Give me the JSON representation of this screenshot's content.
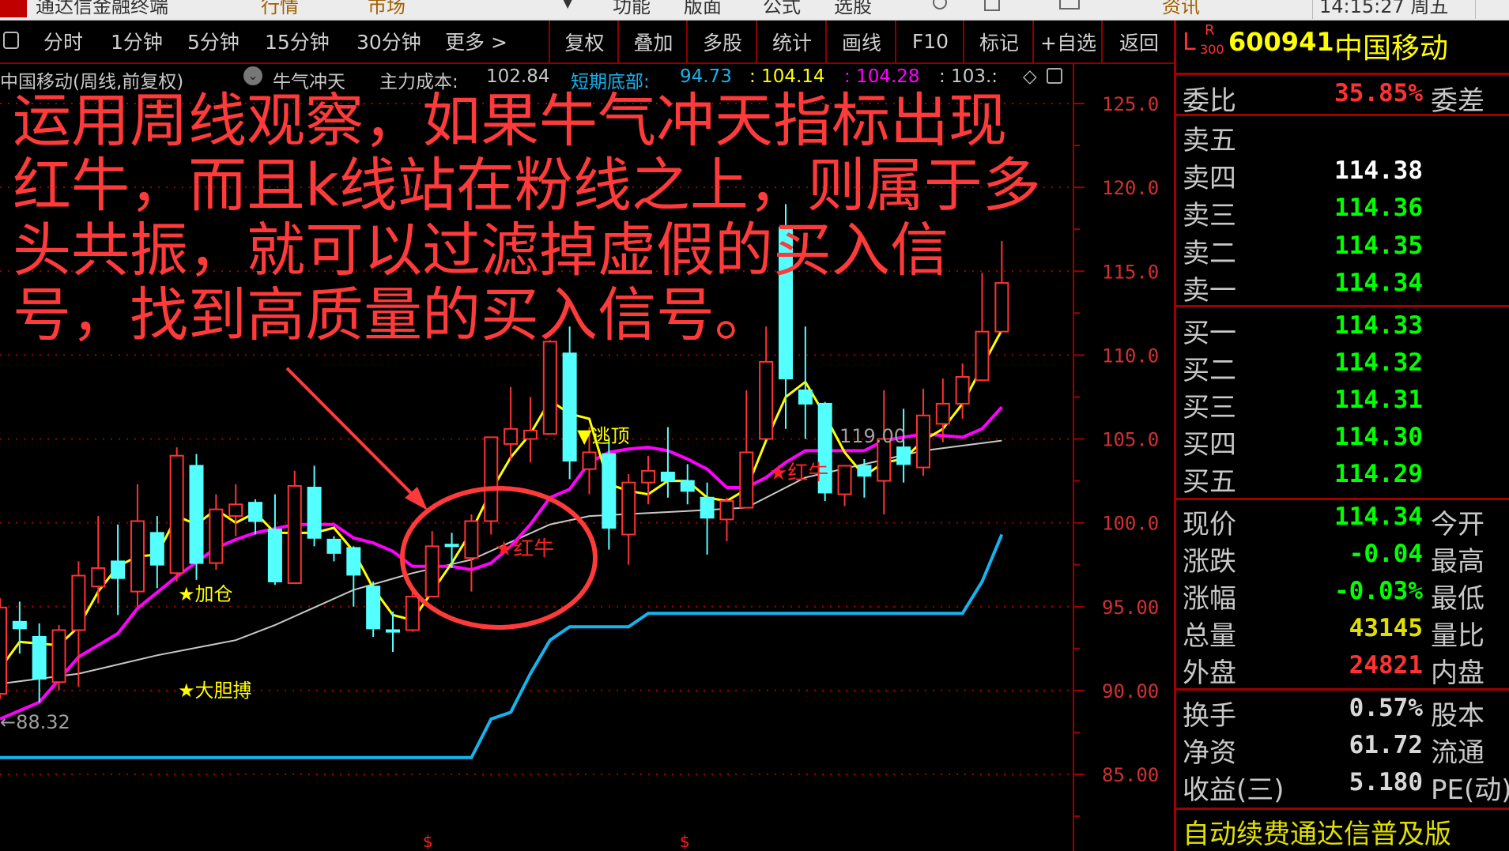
{
  "system_bar": {
    "app_title": "通达信金融终端",
    "menus": [
      "行情",
      "市场",
      "▼",
      "功能",
      "版面",
      "公式",
      "选股",
      "资讯"
    ],
    "clock": "14:15:27 周五"
  },
  "toolbar": {
    "periods": [
      "分时",
      "1分钟",
      "5分钟",
      "15分钟",
      "30分钟",
      "更多 >"
    ],
    "buttons": [
      "复权",
      "叠加",
      "多股",
      "统计",
      "画线",
      "F10",
      "标记",
      "+自选",
      "返回"
    ]
  },
  "info_row": {
    "stock_period": "中国移动(周线,前复权)",
    "indicator": "牛气冲天",
    "main_cost_label": "主力成本:",
    "main_cost": "102.84",
    "short_bottom_label": "短期底部:",
    "short_bottom": "94.73",
    "yellow_value": ": 104.14",
    "magenta_value": ": 104.28",
    "white_value": ": 103.:",
    "diamond": "◇"
  },
  "overlay_text": [
    "运用周线观察，如果牛气冲天指标出现红牛，而且k线站在",
    "粉线之上，则属于多头共振，就可以过滤掉虚假的买入信",
    "号，找到高质量的买入信号。"
  ],
  "colors": {
    "up": "#ff3232",
    "down": "#54ffff",
    "yellow_line": "#ffff00",
    "magenta_line": "#ff00ff",
    "white_line": "#c8c8c8",
    "bottom_line": "#14b4f0",
    "annotation": "#ff3a3a"
  },
  "chart_data": {
    "type": "candlestick",
    "period": "weekly",
    "y_ticks": [
      "125.0",
      "120.0",
      "115.0",
      "110.0",
      "105.0",
      "100.0",
      "95.00",
      "90.00",
      "85.00"
    ],
    "ylim": [
      85,
      125
    ],
    "grid": true,
    "ohlc": [
      [
        89.8,
        95.5,
        89.5,
        94.95
      ],
      [
        94.1,
        95.3,
        92.2,
        93.7
      ],
      [
        93.2,
        94.0,
        89.3,
        90.7
      ],
      [
        90.5,
        93.9,
        90.0,
        93.6
      ],
      [
        93.6,
        97.7,
        90.2,
        96.85
      ],
      [
        96.2,
        100.4,
        95.2,
        97.3
      ],
      [
        97.7,
        99.9,
        94.5,
        96.7
      ],
      [
        95.9,
        102.3,
        95.0,
        100.1
      ],
      [
        99.4,
        100.4,
        96.1,
        97.5
      ],
      [
        97.0,
        104.5,
        96.5,
        104.0
      ],
      [
        103.4,
        104.1,
        96.6,
        97.6
      ],
      [
        97.6,
        101.7,
        97.2,
        100.8
      ],
      [
        100.4,
        102.3,
        99.2,
        101.1
      ],
      [
        101.2,
        101.4,
        99.3,
        100.1
      ],
      [
        99.6,
        101.7,
        96.3,
        96.5
      ],
      [
        96.4,
        103.1,
        96.4,
        102.2
      ],
      [
        102.1,
        103.4,
        98.6,
        99.1
      ],
      [
        99.0,
        99.2,
        97.7,
        98.2
      ],
      [
        98.5,
        98.6,
        95.0,
        96.9
      ],
      [
        96.2,
        96.5,
        93.2,
        93.7
      ],
      [
        93.6,
        94.7,
        92.3,
        93.5
      ],
      [
        93.6,
        96.1,
        93.5,
        95.6
      ],
      [
        95.6,
        99.5,
        95.6,
        98.6
      ],
      [
        98.7,
        99.4,
        97.3,
        98.6
      ],
      [
        97.9,
        100.5,
        95.9,
        100.1
      ],
      [
        100.1,
        105.1,
        99.3,
        105.1
      ],
      [
        104.7,
        108.1,
        103.7,
        105.6
      ],
      [
        105.0,
        107.5,
        103.6,
        105.5
      ],
      [
        105.3,
        110.9,
        105.3,
        110.8
      ],
      [
        110.1,
        111.7,
        102.6,
        103.7
      ],
      [
        103.2,
        105.7,
        101.7,
        104.2
      ],
      [
        104.1,
        105.1,
        98.4,
        99.7
      ],
      [
        99.3,
        102.9,
        97.5,
        102.4
      ],
      [
        102.4,
        104.0,
        101.1,
        103.1
      ],
      [
        103.0,
        105.7,
        101.5,
        102.5
      ],
      [
        102.5,
        103.5,
        101.1,
        101.9
      ],
      [
        101.5,
        102.4,
        98.1,
        100.3
      ],
      [
        100.2,
        101.5,
        98.9,
        101.3
      ],
      [
        100.9,
        107.9,
        100.9,
        104.2
      ],
      [
        105.0,
        111.7,
        105.0,
        109.6
      ],
      [
        117.6,
        119.0,
        105.6,
        108.6
      ],
      [
        107.9,
        111.7,
        105.0,
        107.1
      ],
      [
        107.1,
        107.2,
        101.3,
        101.8
      ],
      [
        101.7,
        103.4,
        101.0,
        103.4
      ],
      [
        103.4,
        103.8,
        101.5,
        102.8
      ],
      [
        102.5,
        107.9,
        100.5,
        105.0
      ],
      [
        104.5,
        106.8,
        102.4,
        103.5
      ],
      [
        103.3,
        108.0,
        102.8,
        106.4
      ],
      [
        105.9,
        108.6,
        104.8,
        107.1
      ],
      [
        107.1,
        109.5,
        106.2,
        108.7
      ],
      [
        108.5,
        114.9,
        108.5,
        111.4
      ],
      [
        111.4,
        116.8,
        111.4,
        114.3
      ]
    ],
    "lines": {
      "yellow": [
        [
          0,
          91.3
        ],
        [
          1,
          92.9
        ],
        [
          3,
          92.7
        ],
        [
          4,
          93.8
        ],
        [
          5,
          95.9
        ],
        [
          6,
          97.4
        ],
        [
          7,
          98.0
        ],
        [
          8,
          98.1
        ],
        [
          9,
          100.4
        ],
        [
          10,
          99.9
        ],
        [
          11,
          100.8
        ],
        [
          12,
          100.0
        ],
        [
          13,
          100.6
        ],
        [
          14,
          99.4
        ],
        [
          16,
          99.4
        ],
        [
          17,
          99.7
        ],
        [
          18,
          98.3
        ],
        [
          19,
          96.1
        ],
        [
          20,
          94.5
        ],
        [
          21,
          94.2
        ],
        [
          22,
          95.9
        ],
        [
          23,
          97.6
        ],
        [
          24,
          99.5
        ],
        [
          25,
          101.9
        ],
        [
          26,
          103.9
        ],
        [
          27,
          105.3
        ],
        [
          28,
          107.3
        ],
        [
          29,
          106.5
        ],
        [
          30,
          106.2
        ],
        [
          31,
          102.3
        ],
        [
          32,
          101.9
        ],
        [
          33,
          101.7
        ],
        [
          34,
          102.5
        ],
        [
          35,
          102.5
        ],
        [
          36,
          101.5
        ],
        [
          37,
          101.3
        ],
        [
          38,
          102.0
        ],
        [
          39,
          104.9
        ],
        [
          40,
          107.5
        ],
        [
          41,
          108.4
        ],
        [
          42,
          106.4
        ],
        [
          43,
          104.2
        ],
        [
          44,
          102.8
        ],
        [
          45,
          103.6
        ],
        [
          46,
          103.8
        ],
        [
          47,
          104.9
        ],
        [
          48,
          105.6
        ],
        [
          49,
          107.1
        ],
        [
          50,
          109.3
        ],
        [
          51,
          111.5
        ]
      ],
      "magenta": [
        [
          0,
          88.3
        ],
        [
          2,
          89.3
        ],
        [
          4,
          92.0
        ],
        [
          6,
          93.4
        ],
        [
          7,
          94.9
        ],
        [
          9,
          96.8
        ],
        [
          11,
          98.5
        ],
        [
          12,
          99.0
        ],
        [
          13,
          99.4
        ],
        [
          15,
          99.9
        ],
        [
          17,
          99.9
        ],
        [
          18,
          99.1
        ],
        [
          19,
          98.8
        ],
        [
          20,
          98.3
        ],
        [
          21,
          97.4
        ],
        [
          23,
          97.4
        ],
        [
          24,
          97.2
        ],
        [
          25,
          97.6
        ],
        [
          26,
          98.6
        ],
        [
          27,
          99.9
        ],
        [
          28,
          101.5
        ],
        [
          29,
          102.0
        ],
        [
          30,
          103.6
        ],
        [
          31,
          104.2
        ],
        [
          32,
          104.4
        ],
        [
          33,
          104.5
        ],
        [
          34,
          104.3
        ],
        [
          35,
          103.8
        ],
        [
          36,
          103.2
        ],
        [
          37,
          102.1
        ],
        [
          38,
          102.1
        ],
        [
          39,
          102.7
        ],
        [
          40,
          103.6
        ],
        [
          41,
          104.3
        ],
        [
          44,
          104.3
        ],
        [
          45,
          104.9
        ],
        [
          46,
          105.1
        ],
        [
          47,
          105.3
        ],
        [
          49,
          105.1
        ],
        [
          50,
          105.6
        ],
        [
          51,
          106.9
        ]
      ],
      "white": [
        [
          0,
          90.4
        ],
        [
          4,
          91.0
        ],
        [
          8,
          92.1
        ],
        [
          12,
          93.0
        ],
        [
          14,
          93.9
        ],
        [
          18,
          96.0
        ],
        [
          21,
          97.0
        ],
        [
          24,
          97.8
        ],
        [
          28,
          99.9
        ],
        [
          30,
          100.4
        ],
        [
          35,
          100.7
        ],
        [
          38,
          100.9
        ],
        [
          41,
          102.7
        ],
        [
          44,
          103.5
        ],
        [
          47,
          104.3
        ],
        [
          51,
          104.9
        ]
      ],
      "short_bottom": [
        [
          0,
          86.0
        ],
        [
          24,
          86.0
        ],
        [
          25,
          88.3
        ],
        [
          26,
          88.7
        ],
        [
          27,
          91.0
        ],
        [
          28,
          93.0
        ],
        [
          29,
          93.8
        ],
        [
          32,
          93.8
        ],
        [
          33,
          94.6
        ],
        [
          49,
          94.6
        ],
        [
          50,
          96.5
        ],
        [
          51,
          99.3
        ]
      ]
    },
    "annotations": {
      "add_position": "★加仓",
      "bold_bet": "★大胆搏",
      "red_bull_1": "★红牛",
      "red_bull_2": "★红牛",
      "escape_top": "▼逃顶",
      "high_label": "119.00",
      "low_label": "←88.32",
      "marker_1": "$",
      "marker_2": "$"
    }
  },
  "quote_panel": {
    "market_flags": [
      "L",
      "R",
      "300"
    ],
    "code": "600941",
    "name": "中国移动",
    "webi_label": "委比",
    "webi_value": "35.85%",
    "weicha_label": "委差",
    "sell": [
      {
        "label": "卖五",
        "value": ""
      },
      {
        "label": "卖四",
        "value": "114.38"
      },
      {
        "label": "卖三",
        "value": "114.36"
      },
      {
        "label": "卖二",
        "value": "114.35"
      },
      {
        "label": "卖一",
        "value": "114.34"
      }
    ],
    "buy": [
      {
        "label": "买一",
        "value": "114.33"
      },
      {
        "label": "买二",
        "value": "114.32"
      },
      {
        "label": "买三",
        "value": "114.31"
      },
      {
        "label": "买四",
        "value": "114.30"
      },
      {
        "label": "买五",
        "value": "114.29"
      }
    ],
    "stats": [
      {
        "label": "现价",
        "value": "114.34",
        "right": "今开",
        "color": "#00ff00"
      },
      {
        "label": "涨跌",
        "value": "-0.04",
        "right": "最高",
        "color": "#00ff00"
      },
      {
        "label": "涨幅",
        "value": "-0.03%",
        "right": "最低",
        "color": "#00ff00"
      },
      {
        "label": "总量",
        "value": "43145",
        "right": "量比",
        "color": "#e0e000"
      },
      {
        "label": "外盘",
        "value": "24821",
        "right": "内盘",
        "color": "#ff3232"
      }
    ],
    "finance": [
      {
        "label": "换手",
        "value": "0.57%",
        "right": "股本"
      },
      {
        "label": "净资",
        "value": "61.72",
        "right": "流通"
      },
      {
        "label": "收益(三)",
        "value": "5.180",
        "right": "PE(动)"
      }
    ],
    "footer": "自动续费通达信普及版"
  }
}
